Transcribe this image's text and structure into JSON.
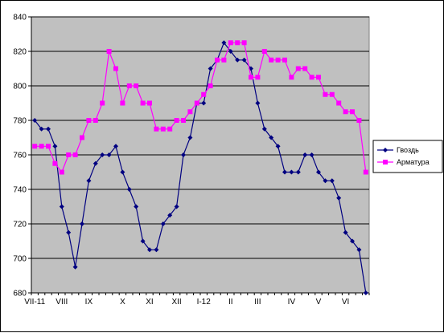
{
  "chart_data": {
    "type": "line",
    "y_ticks": [
      680,
      700,
      720,
      740,
      760,
      780,
      800,
      820,
      840
    ],
    "ylim": [
      680,
      840
    ],
    "x_tick_labels": [
      "VII-11",
      "VIII",
      "IX",
      "X",
      "XI",
      "XII",
      "I-12",
      "II",
      "III",
      "IV",
      "V",
      "VI"
    ],
    "grid": true,
    "legend_position": "right",
    "series": [
      {
        "name": "Гвоздь",
        "color": "#000080",
        "marker": "diamond",
        "values": [
          780,
          775,
          775,
          765,
          730,
          715,
          695,
          720,
          745,
          755,
          760,
          760,
          765,
          750,
          740,
          730,
          710,
          705,
          705,
          720,
          725,
          730,
          760,
          770,
          790,
          790,
          810,
          815,
          825,
          820,
          815,
          815,
          810,
          790,
          775,
          770,
          765,
          750,
          750,
          750,
          760,
          760,
          750,
          745,
          745,
          735,
          715,
          710,
          705,
          680
        ]
      },
      {
        "name": "Арматура",
        "color": "#ff00ff",
        "marker": "square",
        "values": [
          765,
          765,
          765,
          755,
          750,
          760,
          760,
          770,
          780,
          780,
          790,
          820,
          810,
          790,
          800,
          800,
          790,
          790,
          775,
          775,
          775,
          780,
          780,
          785,
          790,
          795,
          800,
          815,
          815,
          825,
          825,
          825,
          805,
          805,
          820,
          815,
          815,
          815,
          805,
          810,
          810,
          805,
          805,
          795,
          795,
          790,
          785,
          785,
          780,
          750
        ]
      }
    ]
  }
}
